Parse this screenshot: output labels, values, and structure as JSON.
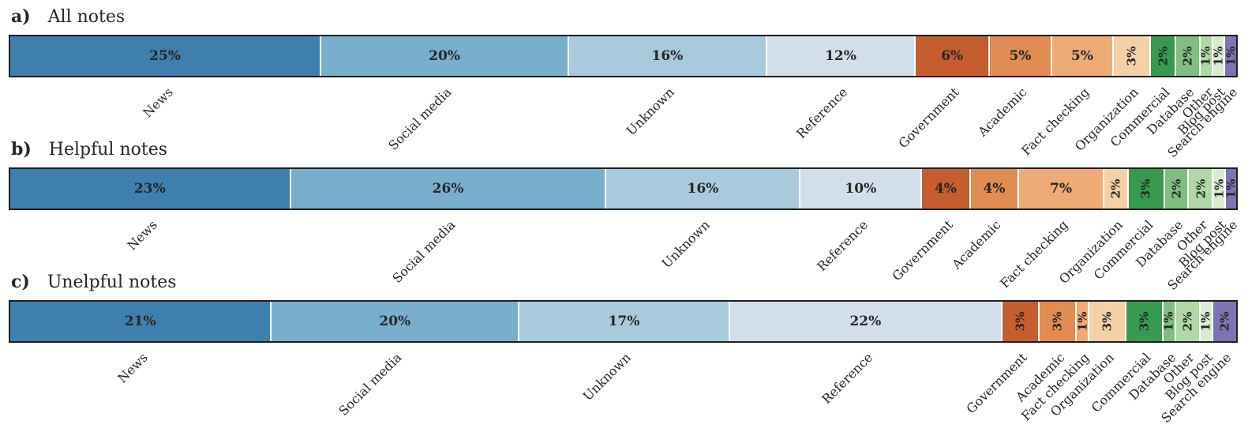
{
  "figure": {
    "background": "#ffffff",
    "text_color": "#262626",
    "bar_border_color": "#1f1f1f",
    "separator_color": "#ffffff"
  },
  "chart_data": {
    "type": "bar",
    "variant": "stacked-100-percent",
    "orientation": "horizontal",
    "unit": "%",
    "category_label_rotation_deg": 45,
    "grid": false,
    "legend": "none",
    "categories": [
      "News",
      "Social media",
      "Unknown",
      "Reference",
      "Government",
      "Academic",
      "Fact checking",
      "Organization",
      "Commercial",
      "Database",
      "Other",
      "Blog post",
      "Search engine"
    ],
    "colors": [
      "#3f7fad",
      "#79aecd",
      "#a9c9dc",
      "#d2dfeb",
      "#c65d2e",
      "#e08c52",
      "#eeab76",
      "#f4d0a6",
      "#379a50",
      "#7fbd80",
      "#afd8a6",
      "#d8ecd0",
      "#7d74b2"
    ],
    "series": [
      {
        "panel_label": "a)",
        "title": "All notes",
        "values": [
          25,
          20,
          16,
          12,
          6,
          5,
          5,
          3,
          2,
          2,
          1,
          1,
          1
        ]
      },
      {
        "panel_label": "b)",
        "title": "Helpful notes",
        "values": [
          23,
          26,
          16,
          10,
          4,
          4,
          7,
          2,
          3,
          2,
          2,
          1,
          1
        ]
      },
      {
        "panel_label": "c)",
        "title": "Unelpful notes",
        "values": [
          21,
          20,
          17,
          22,
          3,
          3,
          1,
          3,
          3,
          1,
          2,
          1,
          2
        ]
      }
    ]
  }
}
